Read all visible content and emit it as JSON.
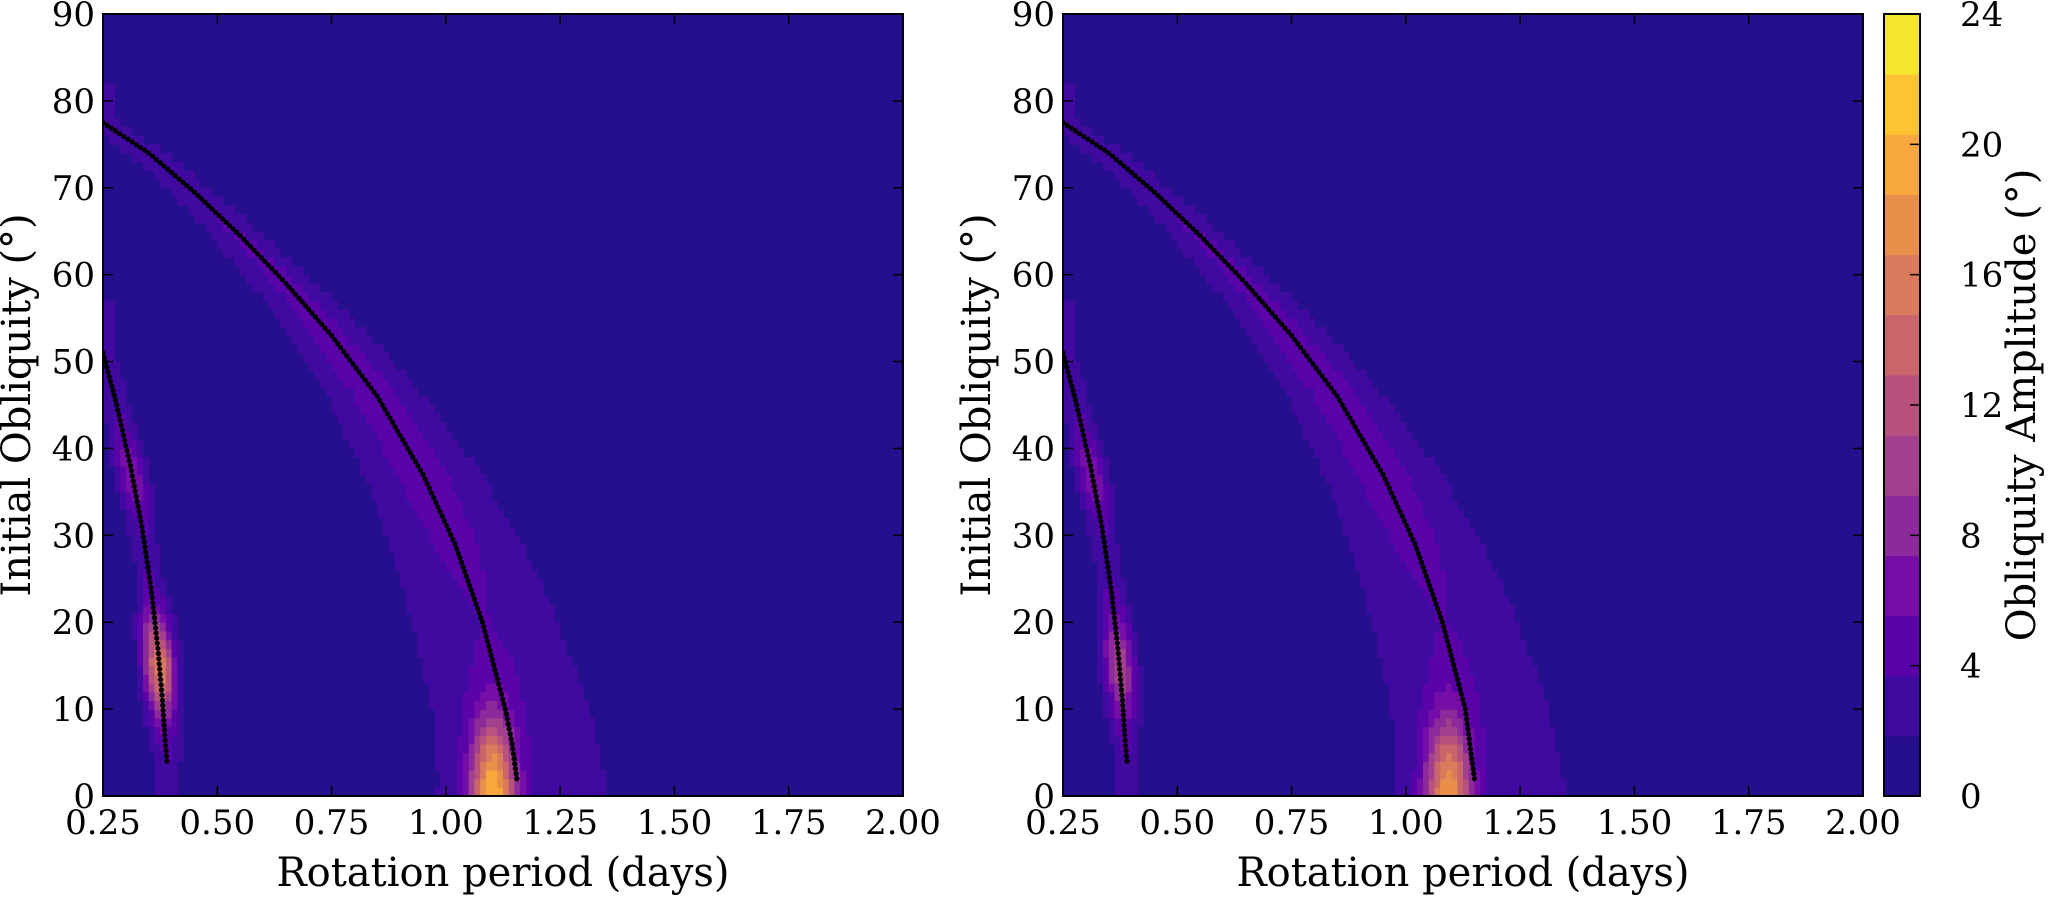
{
  "chart_data": [
    {
      "type": "heatmap",
      "subtype": "filled-contour",
      "panel": "left",
      "xlabel": "Rotation period (days)",
      "ylabel": "Initial Obliquity (°)",
      "xlim": [
        0.25,
        2.0
      ],
      "ylim": [
        0,
        90
      ],
      "xticks": [
        "0.25",
        "0.50",
        "0.75",
        "1.00",
        "1.25",
        "1.50",
        "1.75",
        "2.00"
      ],
      "yticks": [
        "0",
        "10",
        "20",
        "30",
        "40",
        "50",
        "60",
        "70",
        "80",
        "90"
      ],
      "grid": false,
      "background_level": 0,
      "features": [
        {
          "name": "main resonance band",
          "peak_amplitude": 24,
          "peak_period": 1.1,
          "peak_obliquity": 3
        },
        {
          "name": "secondary resonance band",
          "peak_amplitude": 18,
          "peak_period": 0.36,
          "peak_obliquity": 15
        }
      ],
      "overlays": [
        {
          "kind": "resonance-curve",
          "style": "black dots",
          "points": [
            [
              0.25,
              77.5
            ],
            [
              0.35,
              74
            ],
            [
              0.45,
              69.5
            ],
            [
              0.55,
              64.5
            ],
            [
              0.65,
              59
            ],
            [
              0.75,
              53
            ],
            [
              0.85,
              46
            ],
            [
              0.95,
              37
            ],
            [
              1.02,
              29
            ],
            [
              1.08,
              20
            ],
            [
              1.11,
              14
            ],
            [
              1.13,
              10
            ],
            [
              1.145,
              6
            ],
            [
              1.155,
              2
            ]
          ]
        },
        {
          "kind": "resonance-curve",
          "style": "black dots",
          "points": [
            [
              0.25,
              51
            ],
            [
              0.28,
              45
            ],
            [
              0.31,
              38
            ],
            [
              0.335,
              31
            ],
            [
              0.355,
              24
            ],
            [
              0.37,
              17
            ],
            [
              0.38,
              11
            ],
            [
              0.385,
              7
            ],
            [
              0.39,
              4
            ]
          ]
        }
      ]
    },
    {
      "type": "heatmap",
      "subtype": "filled-contour",
      "panel": "right",
      "xlabel": "Rotation period (days)",
      "ylabel": "Initial Obliquity (°)",
      "xlim": [
        0.25,
        2.0
      ],
      "ylim": [
        0,
        90
      ],
      "xticks": [
        "0.25",
        "0.50",
        "0.75",
        "1.00",
        "1.25",
        "1.50",
        "1.75",
        "2.00"
      ],
      "yticks": [
        "0",
        "10",
        "20",
        "30",
        "40",
        "50",
        "60",
        "70",
        "80",
        "90"
      ],
      "grid": false,
      "background_level": 0,
      "features": [
        {
          "name": "main resonance band",
          "peak_amplitude": 22,
          "peak_period": 1.09,
          "peak_obliquity": 3
        },
        {
          "name": "secondary resonance band",
          "peak_amplitude": 12,
          "peak_period": 0.35,
          "peak_obliquity": 15
        }
      ],
      "overlays": [
        {
          "kind": "resonance-curve",
          "style": "black dots",
          "points": [
            [
              0.25,
              77.5
            ],
            [
              0.35,
              74
            ],
            [
              0.45,
              69.5
            ],
            [
              0.55,
              64.5
            ],
            [
              0.65,
              59
            ],
            [
              0.75,
              53
            ],
            [
              0.85,
              46
            ],
            [
              0.95,
              37
            ],
            [
              1.02,
              29
            ],
            [
              1.08,
              20
            ],
            [
              1.11,
              14
            ],
            [
              1.13,
              10
            ],
            [
              1.14,
              6
            ],
            [
              1.15,
              2
            ]
          ]
        },
        {
          "kind": "resonance-curve",
          "style": "black dots",
          "points": [
            [
              0.25,
              51
            ],
            [
              0.28,
              45
            ],
            [
              0.31,
              38
            ],
            [
              0.335,
              31
            ],
            [
              0.355,
              24
            ],
            [
              0.37,
              17
            ],
            [
              0.38,
              11
            ],
            [
              0.385,
              7
            ],
            [
              0.39,
              4
            ]
          ]
        }
      ]
    }
  ],
  "colorbar": {
    "label": "Obliquity Amplitude (°)",
    "levels": [
      0,
      2,
      4,
      6,
      8,
      10,
      12,
      14,
      16,
      18,
      20,
      22,
      24
    ],
    "tick_labels": [
      "0",
      "4",
      "8",
      "12",
      "16",
      "20",
      "24"
    ],
    "colors": [
      "#260f8c",
      "#400aa0",
      "#5a03a8",
      "#740ea6",
      "#8c2a9b",
      "#a3408d",
      "#b6527d",
      "#c9666c",
      "#db7a5c",
      "#ea8e4b",
      "#f6a83c",
      "#fcc433",
      "#f4e52f"
    ]
  }
}
